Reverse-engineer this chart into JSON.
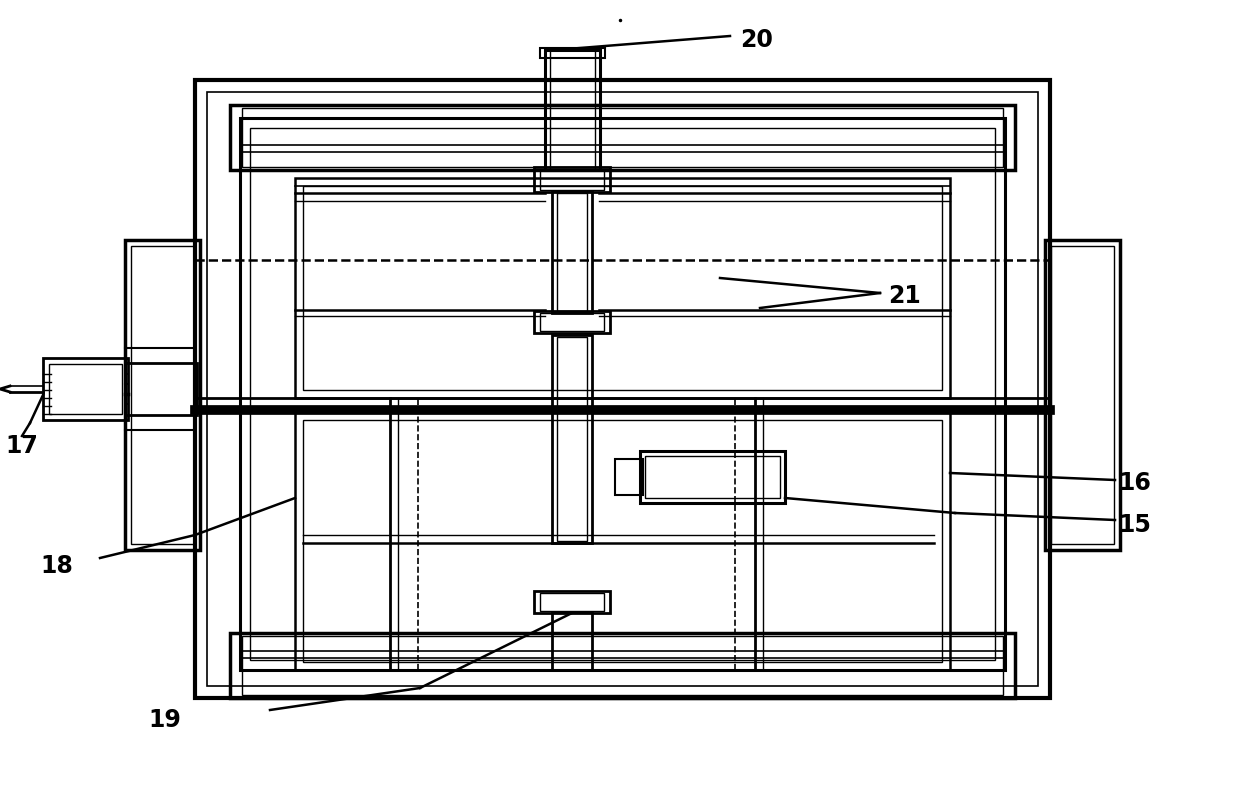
{
  "bg_color": "#ffffff",
  "line_color": "#000000",
  "fig_width": 12.4,
  "fig_height": 7.88,
  "label_fontsize": 17
}
